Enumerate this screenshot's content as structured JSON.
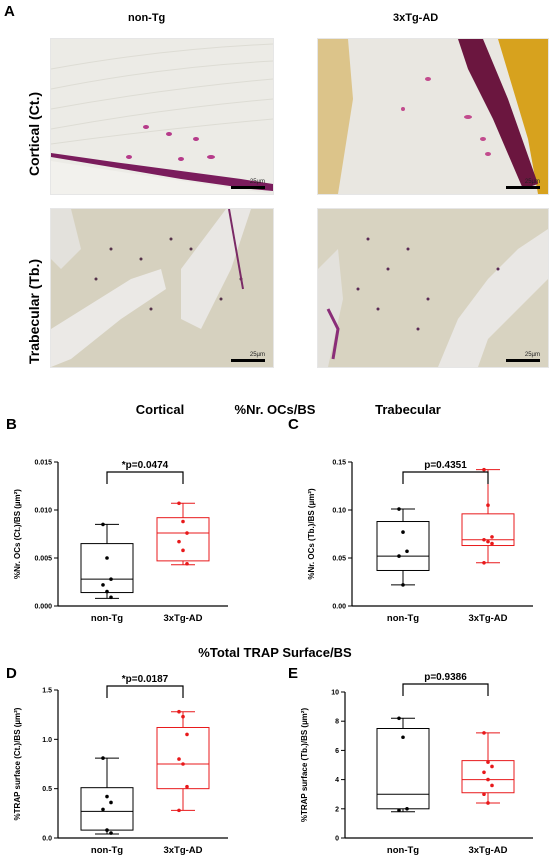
{
  "panel_letters": {
    "a": "A",
    "b": "B",
    "c": "C",
    "d": "D",
    "e": "E"
  },
  "micrographs": {
    "col_left": "non-Tg",
    "col_right": "3xTg-AD",
    "row_top": "Cortical (Ct.)",
    "row_bottom": "Trabecular (Tb.)",
    "scale_label": "25µm"
  },
  "section_titles": {
    "cortical": "Cortical",
    "nr_ocs": "%Nr. OCs/BS",
    "trabecular": "Trabecular",
    "trap": "%Total TRAP Surface/BS"
  },
  "colors": {
    "nonTg": "#000000",
    "tg": "#e8191b",
    "bone_pale": "#eceae2",
    "stain": "#8a1a5e"
  },
  "chart_data": [
    {
      "panel": "B",
      "type": "box",
      "categories": [
        "non-Tg",
        "3xTg-AD"
      ],
      "ylabel": "%Nr. OCs (Ct.)/BS (µm²)",
      "ylim": [
        0,
        0.015
      ],
      "yticks": [
        0.0,
        0.005,
        0.01,
        0.015
      ],
      "ytick_labels": [
        "0.000",
        "0.005",
        "0.010",
        "0.015"
      ],
      "annotation": "*p=0.0474",
      "series": [
        {
          "name": "non-Tg",
          "color": "#000000",
          "min": 0.0008,
          "q1": 0.0014,
          "median": 0.0028,
          "q3": 0.0065,
          "max": 0.0085,
          "points": [
            0.0085,
            0.005,
            0.0028,
            0.0022,
            0.0015,
            0.0009
          ]
        },
        {
          "name": "3xTg-AD",
          "color": "#e8191b",
          "min": 0.0043,
          "q1": 0.0047,
          "median": 0.0076,
          "q3": 0.0092,
          "max": 0.0107,
          "points": [
            0.0107,
            0.0088,
            0.0076,
            0.0067,
            0.0058,
            0.0044
          ]
        }
      ]
    },
    {
      "panel": "C",
      "type": "box",
      "categories": [
        "non-Tg",
        "3xTg-AD"
      ],
      "ylabel": "%Nr. OCs (Tb.)/BS (µm²)",
      "ylim": [
        0,
        0.15
      ],
      "yticks": [
        0.0,
        0.05,
        0.1,
        0.15
      ],
      "ytick_labels": [
        "0.00",
        "0.05",
        "0.10",
        "0.15"
      ],
      "annotation": "p=0.4351",
      "series": [
        {
          "name": "non-Tg",
          "color": "#000000",
          "min": 0.022,
          "q1": 0.037,
          "median": 0.052,
          "q3": 0.088,
          "max": 0.101,
          "points": [
            0.101,
            0.077,
            0.057,
            0.052,
            0.022
          ]
        },
        {
          "name": "3xTg-AD",
          "color": "#e8191b",
          "min": 0.045,
          "q1": 0.063,
          "median": 0.069,
          "q3": 0.096,
          "max": 0.142,
          "points": [
            0.142,
            0.105,
            0.072,
            0.069,
            0.067,
            0.065,
            0.045
          ]
        }
      ]
    },
    {
      "panel": "D",
      "type": "box",
      "categories": [
        "non-Tg",
        "3xTg-AD"
      ],
      "ylabel": "%TRAP surface (Ct.)/BS (µm²)",
      "ylim": [
        0,
        1.5
      ],
      "yticks": [
        0.0,
        0.5,
        1.0,
        1.5
      ],
      "ytick_labels": [
        "0.0",
        "0.5",
        "1.0",
        "1.5"
      ],
      "annotation": "*p=0.0187",
      "series": [
        {
          "name": "non-Tg",
          "color": "#000000",
          "min": 0.04,
          "q1": 0.08,
          "median": 0.27,
          "q3": 0.51,
          "max": 0.81,
          "points": [
            0.81,
            0.42,
            0.36,
            0.29,
            0.08,
            0.05
          ]
        },
        {
          "name": "3xTg-AD",
          "color": "#e8191b",
          "min": 0.28,
          "q1": 0.5,
          "median": 0.75,
          "q3": 1.12,
          "max": 1.28,
          "points": [
            1.28,
            1.23,
            1.05,
            0.8,
            0.75,
            0.52,
            0.28
          ]
        }
      ]
    },
    {
      "panel": "E",
      "type": "box",
      "categories": [
        "non-Tg",
        "3xTg-AD"
      ],
      "ylabel": "%TRAP surface (Tb.)/BS (µm²)",
      "ylim": [
        0,
        10
      ],
      "yticks": [
        0,
        2,
        4,
        6,
        8,
        10
      ],
      "ytick_labels": [
        "0",
        "2",
        "4",
        "6",
        "8",
        "10"
      ],
      "annotation": "p=0.9386",
      "series": [
        {
          "name": "non-Tg",
          "color": "#000000",
          "min": 1.8,
          "q1": 2.0,
          "median": 3.0,
          "q3": 7.5,
          "max": 8.2,
          "points": [
            8.2,
            6.9,
            2.0,
            1.9
          ]
        },
        {
          "name": "3xTg-AD",
          "color": "#e8191b",
          "min": 2.4,
          "q1": 3.1,
          "median": 4.0,
          "q3": 5.3,
          "max": 7.2,
          "points": [
            7.2,
            5.2,
            4.9,
            4.5,
            4.0,
            3.6,
            3.0,
            2.4
          ]
        }
      ]
    }
  ]
}
